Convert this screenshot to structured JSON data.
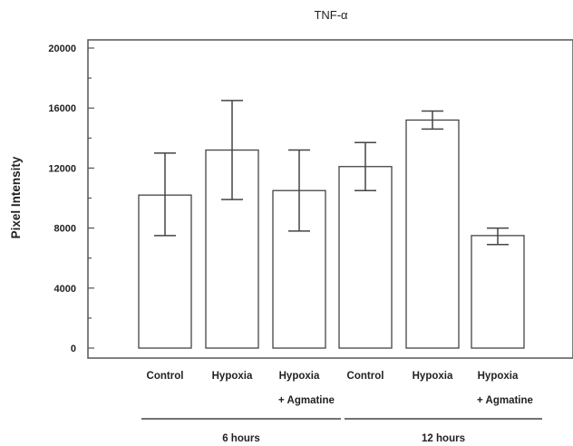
{
  "chart_data": {
    "type": "bar",
    "title": "TNF-α",
    "ylabel": "Pixel Intensity",
    "xlabel": "",
    "ylim": [
      0,
      20000
    ],
    "yticks": [
      0,
      4000,
      8000,
      12000,
      16000,
      20000
    ],
    "grid": false,
    "bars": [
      {
        "line1": "Control",
        "line2": "",
        "value": 10200,
        "err_low": 7500,
        "err_high": 13000
      },
      {
        "line1": "Hypoxia",
        "line2": "",
        "value": 13200,
        "err_low": 9900,
        "err_high": 16500
      },
      {
        "line1": "Hypoxia",
        "line2": "+ Agmatine",
        "value": 10500,
        "err_low": 7800,
        "err_high": 13200
      },
      {
        "line1": "Control",
        "line2": "",
        "value": 12100,
        "err_low": 10500,
        "err_high": 13700
      },
      {
        "line1": "Hypoxia",
        "line2": "",
        "value": 15200,
        "err_low": 14600,
        "err_high": 15800
      },
      {
        "line1": "Hypoxia",
        "line2": "+ Agmatine",
        "value": 7500,
        "err_low": 6900,
        "err_high": 8000
      }
    ],
    "groups": [
      {
        "label": "6 hours",
        "bar_indices": [
          0,
          1,
          2
        ]
      },
      {
        "label": "12 hours",
        "bar_indices": [
          3,
          4,
          5
        ]
      }
    ]
  }
}
